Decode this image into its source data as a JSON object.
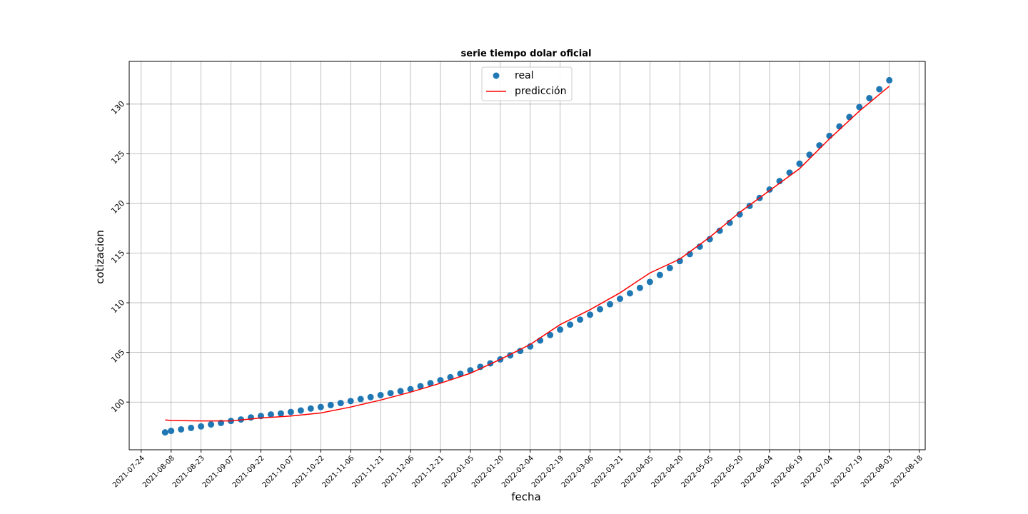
{
  "chart_data": {
    "type": "scatter-line",
    "title": "serie tiempo dolar oficial",
    "x_label": "fecha",
    "y_label": "cotizacion",
    "legend": "upper center",
    "grid": true,
    "xlim": [
      "2021-07-18",
      "2022-08-21"
    ],
    "xticks": [
      "2021-07-24",
      "2021-08-08",
      "2021-08-23",
      "2021-09-07",
      "2021-09-22",
      "2021-10-07",
      "2021-10-22",
      "2021-11-06",
      "2021-11-21",
      "2021-12-06",
      "2021-12-21",
      "2022-01-05",
      "2022-01-20",
      "2022-02-04",
      "2022-02-19",
      "2022-03-06",
      "2022-03-21",
      "2022-04-05",
      "2022-04-20",
      "2022-05-05",
      "2022-05-20",
      "2022-06-04",
      "2022-06-19",
      "2022-07-04",
      "2022-07-19",
      "2022-08-03",
      "2022-08-18"
    ],
    "ylim": [
      95.2,
      134.3
    ],
    "yticks": [
      100,
      105,
      110,
      115,
      120,
      125,
      130
    ],
    "series": [
      {
        "name": "real",
        "kind": "scatter",
        "color": "#1f77b4",
        "x": [
          "2021-08-05",
          "2021-08-08",
          "2021-08-13",
          "2021-08-18",
          "2021-08-23",
          "2021-08-28",
          "2021-09-02",
          "2021-09-07",
          "2021-09-12",
          "2021-09-17",
          "2021-09-22",
          "2021-09-27",
          "2021-10-02",
          "2021-10-07",
          "2021-10-12",
          "2021-10-17",
          "2021-10-22",
          "2021-10-27",
          "2021-11-01",
          "2021-11-06",
          "2021-11-11",
          "2021-11-16",
          "2021-11-21",
          "2021-11-26",
          "2021-12-01",
          "2021-12-06",
          "2021-12-11",
          "2021-12-16",
          "2021-12-21",
          "2021-12-26",
          "2021-12-31",
          "2022-01-05",
          "2022-01-10",
          "2022-01-15",
          "2022-01-20",
          "2022-01-25",
          "2022-01-30",
          "2022-02-04",
          "2022-02-09",
          "2022-02-14",
          "2022-02-19",
          "2022-02-24",
          "2022-03-01",
          "2022-03-06",
          "2022-03-11",
          "2022-03-16",
          "2022-03-21",
          "2022-03-26",
          "2022-03-31",
          "2022-04-05",
          "2022-04-10",
          "2022-04-15",
          "2022-04-20",
          "2022-04-25",
          "2022-04-30",
          "2022-05-05",
          "2022-05-10",
          "2022-05-15",
          "2022-05-20",
          "2022-05-25",
          "2022-05-30",
          "2022-06-04",
          "2022-06-09",
          "2022-06-14",
          "2022-06-19",
          "2022-06-24",
          "2022-06-29",
          "2022-07-04",
          "2022-07-09",
          "2022-07-14",
          "2022-07-19",
          "2022-07-24",
          "2022-07-29",
          "2022-08-03"
        ],
        "values": [
          96.95,
          97.1,
          97.25,
          97.4,
          97.55,
          97.75,
          97.9,
          98.1,
          98.25,
          98.45,
          98.6,
          98.75,
          98.85,
          99.0,
          99.15,
          99.35,
          99.5,
          99.7,
          99.9,
          100.1,
          100.3,
          100.5,
          100.7,
          100.9,
          101.1,
          101.3,
          101.6,
          101.9,
          102.2,
          102.5,
          102.85,
          103.2,
          103.55,
          103.9,
          104.3,
          104.7,
          105.15,
          105.6,
          106.2,
          106.75,
          107.3,
          107.8,
          108.3,
          108.8,
          109.35,
          109.85,
          110.4,
          110.95,
          111.5,
          112.1,
          112.8,
          113.5,
          114.2,
          114.9,
          115.65,
          116.4,
          117.25,
          118.05,
          118.9,
          119.75,
          120.55,
          121.4,
          122.25,
          123.1,
          124.0,
          124.9,
          125.85,
          126.8,
          127.75,
          128.7,
          129.7,
          130.6,
          131.5,
          132.4
        ]
      },
      {
        "name": "predicción",
        "kind": "line",
        "color": "#ff0000",
        "x": [
          "2021-08-05",
          "2021-08-08",
          "2021-08-23",
          "2021-09-07",
          "2021-09-22",
          "2021-10-07",
          "2021-10-22",
          "2021-11-06",
          "2021-11-21",
          "2021-12-06",
          "2021-12-21",
          "2022-01-05",
          "2022-01-20",
          "2022-02-04",
          "2022-02-19",
          "2022-03-06",
          "2022-03-21",
          "2022-04-05",
          "2022-04-20",
          "2022-05-05",
          "2022-05-20",
          "2022-06-04",
          "2022-06-19",
          "2022-07-04",
          "2022-07-19",
          "2022-08-03"
        ],
        "values": [
          98.2,
          98.15,
          98.1,
          98.1,
          98.4,
          98.6,
          98.9,
          99.5,
          100.2,
          101.0,
          101.9,
          102.9,
          104.3,
          105.8,
          107.8,
          109.3,
          111.0,
          113.0,
          114.4,
          116.6,
          119.1,
          121.3,
          123.5,
          126.5,
          129.3,
          131.8
        ]
      }
    ]
  }
}
